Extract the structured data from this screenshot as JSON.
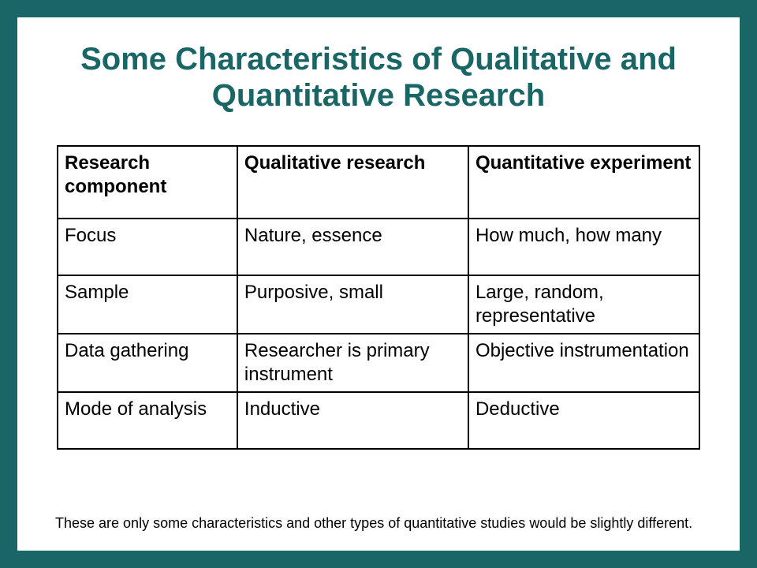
{
  "colors": {
    "frame": "#1a6666",
    "slide_bg": "#ffffff",
    "title": "#1a6666",
    "text": "#000000",
    "border": "#000000"
  },
  "title": "Some Characteristics of Qualitative and Quantitative Research",
  "table": {
    "type": "table",
    "columns": [
      "Research component",
      "Qualitative research",
      "Quantitative experiment"
    ],
    "rows": [
      [
        "Focus",
        "Nature, essence",
        "How much, how many"
      ],
      [
        "Sample",
        "Purposive, small",
        "Large, random, representative"
      ],
      [
        "Data gathering",
        "Researcher is primary instrument",
        "Objective instrumentation"
      ],
      [
        "Mode of analysis",
        "Inductive",
        "Deductive"
      ]
    ],
    "header_fontsize": 24,
    "cell_fontsize": 24,
    "border_width": 2,
    "col_widths_pct": [
      28,
      36,
      36
    ]
  },
  "footnote": "These are only some characteristics and other types of quantitative studies would be slightly different."
}
